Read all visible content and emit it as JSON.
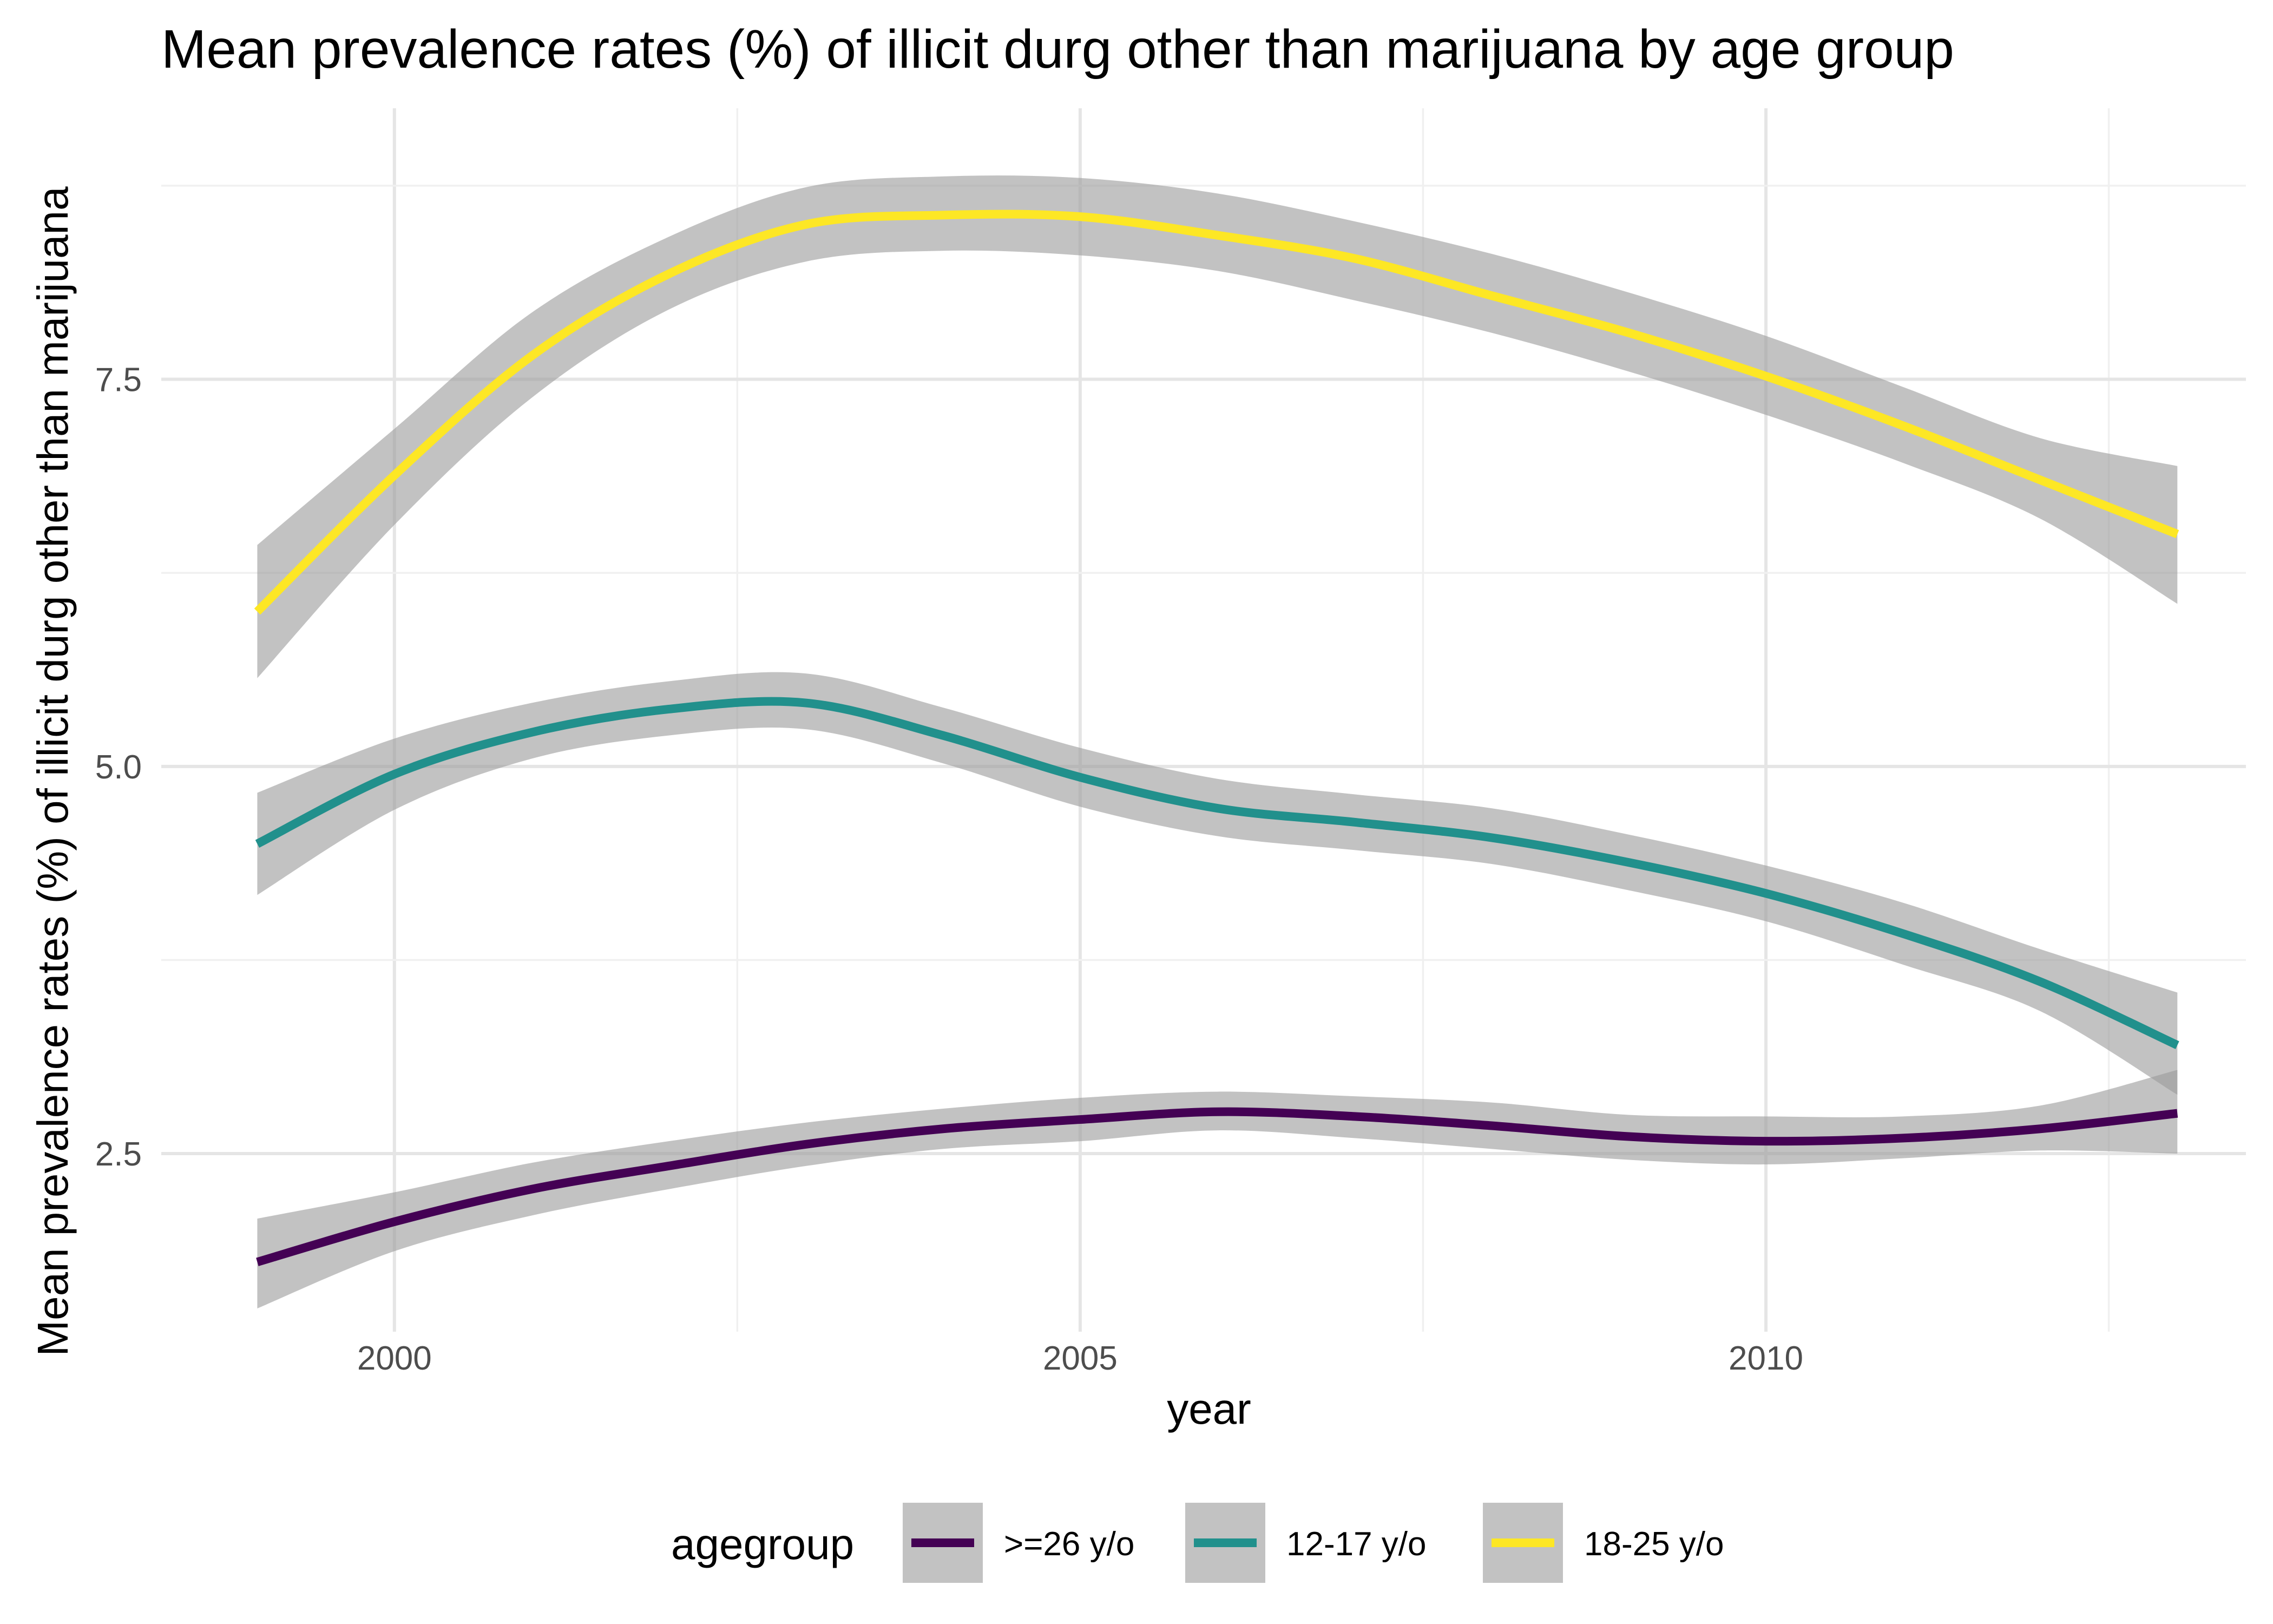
{
  "chart_data": {
    "type": "line",
    "title": "Mean prevalence rates (%) of illicit durg other than marijuana by age group",
    "xlabel": "year",
    "ylabel": "Mean prevalence rates (%) of illicit durg other than marijuana",
    "xlim": [
      1998.3,
      2013.5
    ],
    "ylim": [
      1.35,
      9.25
    ],
    "x_ticks": [
      2000,
      2005,
      2010
    ],
    "y_ticks": [
      2.5,
      5.0,
      7.5
    ],
    "x_tick_labels": [
      "2000",
      "2005",
      "2010"
    ],
    "y_tick_labels": [
      "2.5",
      "5.0",
      "7.5"
    ],
    "grid": true,
    "legend": {
      "title": "agegroup",
      "position": "bottom"
    },
    "x": [
      1999,
      2000,
      2001,
      2002,
      2003,
      2004,
      2005,
      2006,
      2007,
      2008,
      2009,
      2010,
      2011,
      2012,
      2013
    ],
    "series": [
      {
        "name": ">=26 y/o",
        "color": "#440154",
        "values": [
          1.8,
          2.06,
          2.27,
          2.42,
          2.56,
          2.66,
          2.72,
          2.77,
          2.74,
          2.68,
          2.61,
          2.58,
          2.6,
          2.66,
          2.76
        ],
        "ci_lower": [
          1.5,
          1.87,
          2.1,
          2.27,
          2.42,
          2.53,
          2.58,
          2.65,
          2.6,
          2.53,
          2.46,
          2.43,
          2.47,
          2.52,
          2.5
        ],
        "ci_upper": [
          2.08,
          2.25,
          2.44,
          2.58,
          2.7,
          2.79,
          2.86,
          2.9,
          2.87,
          2.83,
          2.75,
          2.74,
          2.74,
          2.81,
          3.04
        ]
      },
      {
        "name": "12-17 y/o",
        "color": "#21908C",
        "values": [
          4.5,
          4.95,
          5.22,
          5.37,
          5.41,
          5.2,
          4.93,
          4.73,
          4.64,
          4.54,
          4.38,
          4.18,
          3.92,
          3.61,
          3.2
        ],
        "ci_lower": [
          4.17,
          4.72,
          5.05,
          5.2,
          5.24,
          5.02,
          4.74,
          4.55,
          4.46,
          4.37,
          4.2,
          4.0,
          3.72,
          3.42,
          2.88
        ],
        "ci_upper": [
          4.83,
          5.18,
          5.41,
          5.55,
          5.6,
          5.38,
          5.12,
          4.92,
          4.82,
          4.73,
          4.56,
          4.36,
          4.12,
          3.82,
          3.54
        ]
      },
      {
        "name": "18-25 y/o",
        "color": "#FDE725",
        "values": [
          6.0,
          6.88,
          7.65,
          8.18,
          8.5,
          8.56,
          8.55,
          8.43,
          8.28,
          8.04,
          7.8,
          7.52,
          7.2,
          6.85,
          6.5
        ],
        "ci_lower": [
          5.57,
          6.56,
          7.38,
          7.95,
          8.26,
          8.33,
          8.3,
          8.2,
          8.01,
          7.8,
          7.55,
          7.27,
          6.96,
          6.6,
          6.05
        ],
        "ci_upper": [
          6.43,
          7.18,
          7.93,
          8.42,
          8.74,
          8.81,
          8.8,
          8.7,
          8.52,
          8.31,
          8.06,
          7.78,
          7.45,
          7.12,
          6.94
        ]
      }
    ]
  }
}
